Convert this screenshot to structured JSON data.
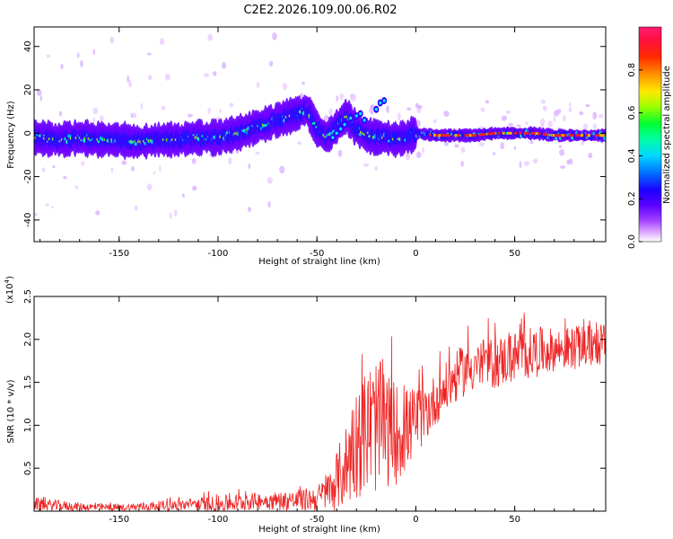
{
  "title": "C2E2.2026.109.00.06.R02",
  "colors": {
    "signal": "#ee2020",
    "snr": "#ee2222",
    "axis": "#000000",
    "background": "#ffffff"
  },
  "chart_data": [
    {
      "type": "heatmap",
      "name": "spectrogram",
      "xlabel": "Height of straight line (km)",
      "ylabel": "Frequency (Hz)",
      "xlim": [
        -193,
        96
      ],
      "ylim": [
        -50,
        49
      ],
      "xticks": [
        -150,
        -100,
        -50,
        0,
        50
      ],
      "yticks": [
        -40,
        -20,
        0,
        20,
        40
      ],
      "colorbar": {
        "label": "Normalized spectral amplitude",
        "range": [
          0,
          1
        ],
        "ticks": [
          "0.0",
          "0.2",
          "0.4",
          "0.6",
          "0.8"
        ],
        "tick_values": [
          0.0,
          0.2,
          0.4,
          0.6,
          0.8
        ],
        "colormap": [
          "#ffffff",
          "#cc88ff",
          "#7a00ff",
          "#2a00ff",
          "#0060ff",
          "#00d8ff",
          "#00ff60",
          "#90ff00",
          "#ffe000",
          "#ff8000",
          "#ff1e1e",
          "#ff1a6a"
        ]
      },
      "ridge": {
        "description": "dominant frequency track (Hz) vs height (km)",
        "x": [
          -193,
          -180,
          -170,
          -160,
          -150,
          -140,
          -130,
          -120,
          -110,
          -100,
          -90,
          -80,
          -70,
          -60,
          -55,
          -50,
          -45,
          -40,
          -35,
          -30,
          -25,
          -20,
          -15,
          -10,
          -5,
          0,
          10,
          20,
          30,
          40,
          50,
          60,
          70,
          80,
          96
        ],
        "y": [
          -2,
          -3,
          -2,
          -3,
          -3,
          -4,
          -3,
          -3,
          -2,
          -2,
          0,
          3,
          6,
          9,
          11,
          2,
          -2,
          3,
          8,
          2,
          -1,
          -2,
          -2,
          -3,
          -2,
          0,
          -1,
          -1,
          -1,
          0,
          0,
          0,
          -1,
          -1,
          -1
        ]
      }
    },
    {
      "type": "line",
      "name": "snr",
      "xlabel": "Height of straight line (km)",
      "ylabel": "SNR (10 * v/v)",
      "multiplier_label": "(x10",
      "multiplier_exponent": "4",
      "multiplier_close": ")",
      "xlim": [
        -193,
        96
      ],
      "ylim": [
        0,
        2.5
      ],
      "xticks": [
        -150,
        -100,
        -50,
        0,
        50
      ],
      "yticks": [
        0.5,
        1.0,
        1.5,
        2.0,
        2.5
      ],
      "ytick_labels": [
        "0.5",
        "1.0",
        "1.5",
        "2.0",
        "2.5"
      ],
      "envelope": {
        "description": "approximate trend of SNR (x10^4) vs height (km)",
        "x": [
          -193,
          -170,
          -150,
          -120,
          -100,
          -80,
          -60,
          -50,
          -45,
          -40,
          -35,
          -30,
          -25,
          -20,
          -15,
          -10,
          -5,
          0,
          5,
          10,
          20,
          25,
          30,
          40,
          50,
          60,
          70,
          80,
          96
        ],
        "mean": [
          0.08,
          0.05,
          0.04,
          0.07,
          0.08,
          0.12,
          0.12,
          0.15,
          0.22,
          0.35,
          0.55,
          0.8,
          0.95,
          1.0,
          0.95,
          0.9,
          0.95,
          1.05,
          1.15,
          1.3,
          1.55,
          1.65,
          1.7,
          1.72,
          1.8,
          1.85,
          1.88,
          1.9,
          1.95
        ],
        "amplitude": [
          0.08,
          0.05,
          0.04,
          0.07,
          0.1,
          0.1,
          0.12,
          0.15,
          0.2,
          0.35,
          0.5,
          0.65,
          0.75,
          0.8,
          0.7,
          0.6,
          0.5,
          0.4,
          0.35,
          0.3,
          0.3,
          0.3,
          0.3,
          0.3,
          0.3,
          0.3,
          0.25,
          0.25,
          0.25
        ]
      }
    }
  ]
}
